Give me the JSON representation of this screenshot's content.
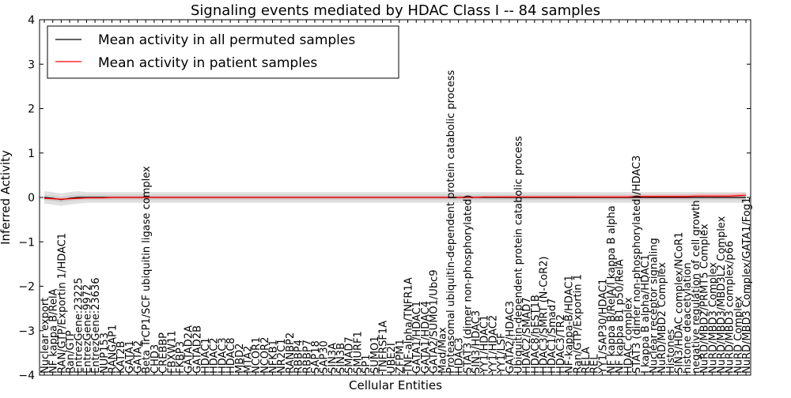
{
  "chart_data": {
    "type": "line",
    "title": "Signaling events mediated by HDAC Class I -- 84 samples",
    "xlabel": "Cellular Entities",
    "ylabel": "Inferred Activity",
    "ylim": [
      -4,
      4
    ],
    "yticks": [
      -4,
      -3,
      -2,
      -1,
      0,
      1,
      2,
      3,
      4
    ],
    "grid": false,
    "legend_position": "top-left",
    "colors": {
      "permuted": "#000000",
      "patient": "#ff0000",
      "band_outer": "#dddddd",
      "band_inner": "#c8c8c8",
      "patient_band": "#f4a0a0"
    },
    "categories": [
      "Nuclear export",
      "NF kappa B/RelA",
      "RAN/GTP/Exportin 1/HDAC1",
      "Ran/GTP",
      "EntrezGene:23225",
      "EntrezGene:9972",
      "EntrezGene:23636",
      "NUP153",
      "RANGAP1",
      "KAT2B",
      "GATA1",
      "GATA2",
      "Beta TrCP1/SCF ubiquitin ligase complex",
      "CHD3",
      "CREBBP",
      "FBXW11",
      "FKBP3",
      "GATAD2A",
      "GATAD2B",
      "HDAC1",
      "HDAC2",
      "HDAC3",
      "HDAC8",
      "MBD2",
      "MTA2",
      "NCOR1",
      "NCOR2",
      "NFKB1",
      "NR2C1",
      "RANBP2",
      "RBBP4",
      "RBBP7",
      "SAP18",
      "SAP30",
      "SIN3A",
      "SIN3B",
      "SMAD7",
      "SMURF1",
      "SP1",
      "SUMO1",
      "TNFRSF1A",
      "UBE2I",
      "ZFPM1",
      "TNF-alpha/TNFR1A",
      "GATA1/HDAC1",
      "GATA1/HDAC4",
      "GATA2/SUMO1/Ubc9",
      "Mad/Max",
      "Proteasomal ubiquitin-dependent protein catabolic process",
      "HDAC3",
      "STAT3 (dimer non-phosphorylated)",
      "SIN3/HDAC3",
      "YY1/HDAC1",
      "YY1/HDAC2",
      "YY1/LSF",
      "GATA2/HDAC3",
      "Ubiquitin-dependent protein catabolic process",
      "HDAC2/SMAD7",
      "HDAC8/hEST1B",
      "HDAC3/SMRT (N-CoR2)",
      "HDAC1/Smad7",
      "HDAC3/TR2",
      "NF-kappa-B/HDAC1",
      "Ran/GTP/Exportin 1",
      "RELA",
      "REL",
      "YY1/SAP30/HDAC1",
      "NF kappa B/RelA/I kappa B alpha",
      "NF kappa B1 p50/RelA",
      "HDAC complex",
      "STAT3 (dimer non-phosphorylated)/HDAC3",
      "I kappa B alpha/HDAC1",
      "Nuclear receptor signaling",
      "NuRD/MBD2 Complex",
      "Histones",
      "SIN3/HDAC complex/NCoR1",
      "histone deacetylation",
      "negative regulation of cell growth",
      "NuRD/MBD2/PRMT5 Complex",
      "NuRD/MBD3 Complex",
      "NuRD/MBD3/MBD3L2 Complex",
      "NuRD/MBD3 complex/p66",
      "NuRD Complex",
      "NuRD/MBD3 Complex/GATA1/Fog1"
    ],
    "series": [
      {
        "name": "Mean activity in all permuted samples",
        "values": [
          0.0,
          -0.02,
          -0.05,
          -0.02,
          0.0,
          0.0,
          0.0,
          0.0,
          0.0,
          0.0,
          0.0,
          0.0,
          0.0,
          0.0,
          0.0,
          0.0,
          0.0,
          0.0,
          0.0,
          0.0,
          0.0,
          0.0,
          0.0,
          0.0,
          0.0,
          0.0,
          0.0,
          0.0,
          0.0,
          0.0,
          0.0,
          0.0,
          0.0,
          0.0,
          0.0,
          0.0,
          0.0,
          0.0,
          0.0,
          0.0,
          0.0,
          0.0,
          0.0,
          0.0,
          0.0,
          0.0,
          0.0,
          0.0,
          0.0,
          0.0,
          0.0,
          0.0,
          0.0,
          0.0,
          0.0,
          0.0,
          0.0,
          0.0,
          0.0,
          0.0,
          0.0,
          0.0,
          0.0,
          0.0,
          0.0,
          0.0,
          0.0,
          0.0,
          0.0,
          0.0,
          0.0,
          0.0,
          0.0,
          0.0,
          0.0,
          0.0,
          0.0,
          0.0,
          0.0,
          0.0,
          0.0,
          0.0,
          0.0,
          0.0
        ]
      },
      {
        "name": "Mean activity in patient samples",
        "values": [
          -0.02,
          -0.03,
          -0.04,
          -0.03,
          -0.02,
          -0.01,
          -0.01,
          -0.01,
          0.0,
          0.0,
          0.0,
          0.0,
          0.0,
          0.0,
          0.0,
          0.0,
          0.0,
          0.0,
          0.0,
          0.0,
          0.0,
          0.0,
          0.0,
          0.0,
          0.0,
          0.0,
          0.0,
          0.0,
          0.0,
          0.0,
          0.0,
          0.0,
          0.0,
          0.0,
          0.0,
          0.0,
          0.0,
          0.0,
          0.0,
          0.0,
          0.0,
          0.0,
          0.0,
          0.0,
          0.0,
          0.0,
          0.0,
          0.0,
          0.0,
          0.0,
          0.0,
          0.0,
          0.01,
          0.01,
          0.01,
          0.01,
          0.01,
          0.01,
          0.01,
          0.01,
          0.01,
          0.01,
          0.01,
          0.01,
          0.01,
          0.01,
          0.01,
          0.01,
          0.01,
          0.01,
          0.02,
          0.02,
          0.02,
          0.02,
          0.02,
          0.02,
          0.02,
          0.03,
          0.03,
          0.03,
          0.03,
          0.03,
          0.04,
          0.05
        ]
      }
    ]
  }
}
